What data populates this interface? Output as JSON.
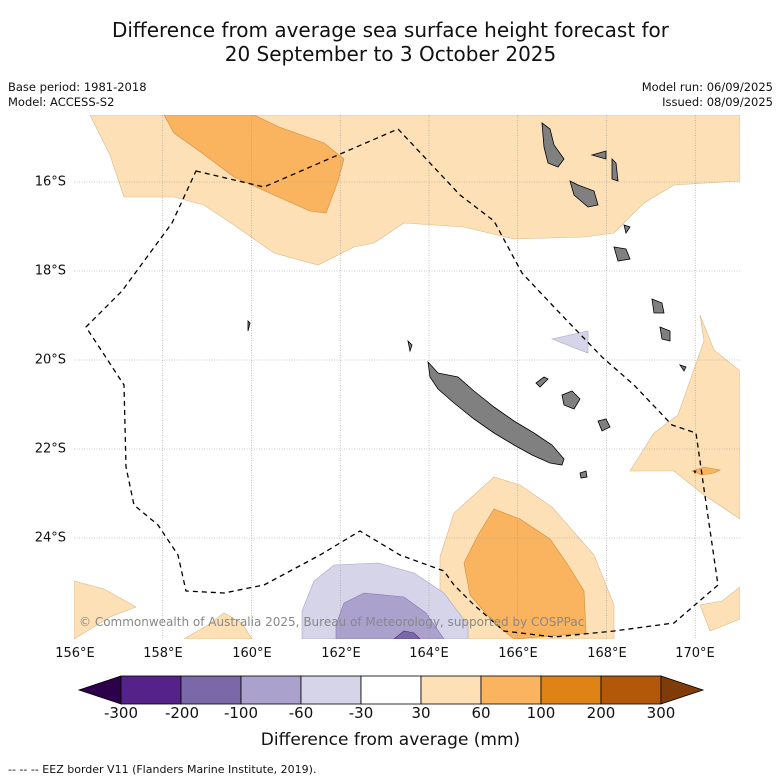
{
  "title_line1": "Difference from average sea surface height forecast for",
  "title_line2": "20 September to 3 October 2025",
  "meta_left": {
    "base_period": "Base period: 1981-2018",
    "model": "Model: ACCESS-S2"
  },
  "meta_right": {
    "model_run": "Model run: 06/09/2025",
    "issued": "Issued: 08/09/2025"
  },
  "lat_labels": [
    "16°S",
    "18°S",
    "20°S",
    "22°S",
    "24°S"
  ],
  "lon_labels": [
    "156°E",
    "158°E",
    "160°E",
    "162°E",
    "164°E",
    "166°E",
    "168°E",
    "170°E"
  ],
  "copyright": "© Commonwealth of Australia 2025, Bureau of Meteorology, supported by COSPPac",
  "colorbar": {
    "ticks": [
      "-300",
      "-200",
      "-100",
      "-60",
      "-30",
      "30",
      "60",
      "100",
      "200",
      "300"
    ],
    "colors": [
      "#55228a",
      "#7b68a8",
      "#aaa1cc",
      "#d6d4e8",
      "#ffffff",
      "#fde0b5",
      "#fab45f",
      "#e08317",
      "#b35808"
    ],
    "under_color": "#2d004b",
    "over_color": "#7f3b08",
    "label": "Difference from average (mm)"
  },
  "footer": "-- -- -- EEZ border V11 (Flanders Marine Institute, 2019).",
  "colors": {
    "land": "#808080",
    "grid": "#999999",
    "eez": "#000000"
  }
}
